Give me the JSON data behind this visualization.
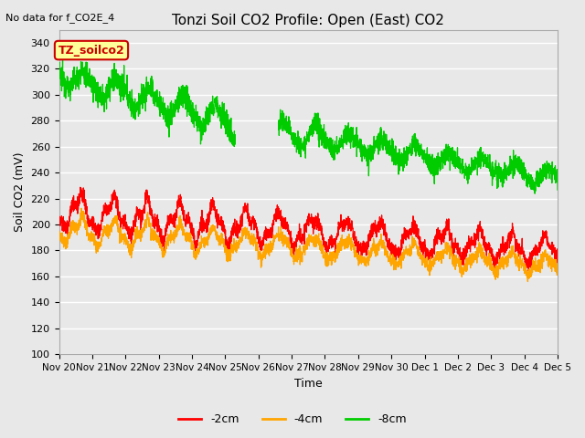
{
  "title": "Tonzi Soil CO2 Profile: Open (East) CO2",
  "no_data_text": "No data for f_CO2E_4",
  "ylabel": "Soil CO2 (mV)",
  "xlabel": "Time",
  "ylim": [
    100,
    350
  ],
  "yticks": [
    100,
    120,
    140,
    160,
    180,
    200,
    220,
    240,
    260,
    280,
    300,
    320,
    340
  ],
  "x_tick_labels": [
    "Nov 20",
    "Nov 21",
    "Nov 22",
    "Nov 23",
    "Nov 24",
    "Nov 25",
    "Nov 26",
    "Nov 27",
    "Nov 28",
    "Nov 29",
    "Nov 30",
    "Dec 1",
    "Dec 2",
    "Dec 3",
    "Dec 4",
    "Dec 5"
  ],
  "series_labels": [
    "-2cm",
    "-4cm",
    "-8cm"
  ],
  "series_colors": [
    "#ff0000",
    "#ffa500",
    "#00cc00"
  ],
  "background_color": "#e8e8e8",
  "grid_color": "#ffffff",
  "title_fontsize": 11,
  "axis_fontsize": 9,
  "tick_fontsize": 8,
  "legend_fontsize": 9,
  "legend_label": "TZ_soilco2",
  "legend_box_color": "#ffff99",
  "legend_box_edge": "#cc0000",
  "figsize": [
    6.4,
    4.8
  ],
  "dpi": 100
}
